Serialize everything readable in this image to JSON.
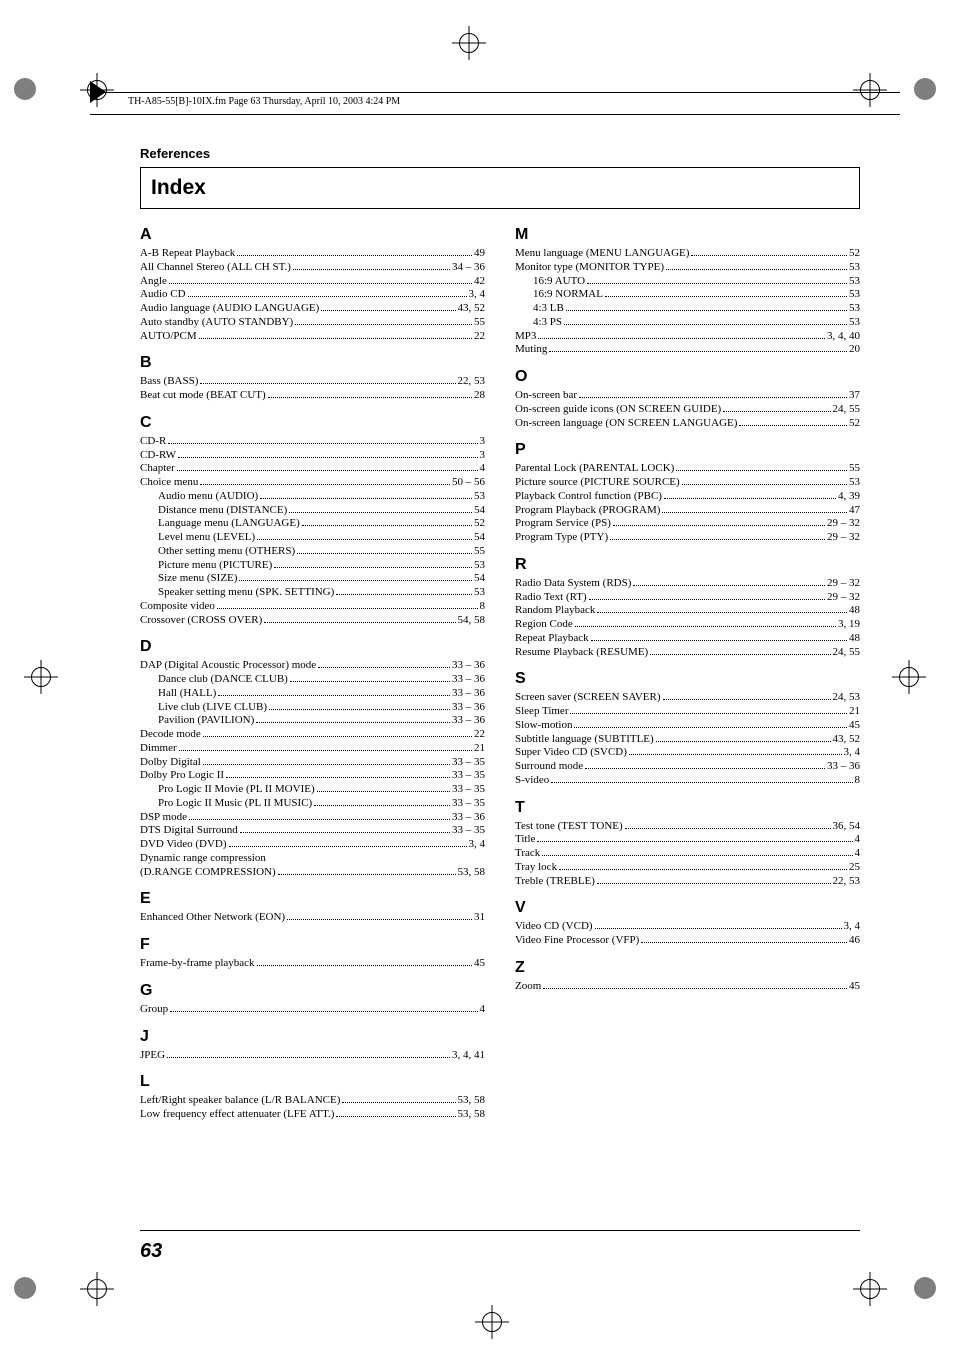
{
  "running_head": "TH-A85-55[B]-10IX.fm  Page 63  Thursday, April 10, 2003  4:24 PM",
  "section_title": "References",
  "index_title": "Index",
  "page_number": "63",
  "left": {
    "A": [
      {
        "l": "A-B Repeat Playback",
        "p": "49"
      },
      {
        "l": "All Channel Stereo (ALL CH ST.)",
        "p": "34 – 36"
      },
      {
        "l": "Angle",
        "p": "42"
      },
      {
        "l": "Audio CD",
        "p": "3, 4"
      },
      {
        "l": "Audio language (AUDIO LANGUAGE)",
        "p": "43, 52"
      },
      {
        "l": "Auto standby (AUTO STANDBY)",
        "p": "55"
      },
      {
        "l": "AUTO/PCM",
        "p": "22"
      }
    ],
    "B": [
      {
        "l": "Bass (BASS)",
        "p": "22, 53"
      },
      {
        "l": "Beat cut mode (BEAT CUT)",
        "p": "28"
      }
    ],
    "C": [
      {
        "l": "CD-R",
        "p": "3"
      },
      {
        "l": "CD-RW",
        "p": "3"
      },
      {
        "l": "Chapter",
        "p": "4"
      },
      {
        "l": "Choice menu",
        "p": "50 – 56"
      },
      {
        "l": "Audio menu (AUDIO)",
        "p": "53",
        "i": 1
      },
      {
        "l": "Distance menu (DISTANCE)",
        "p": "54",
        "i": 1
      },
      {
        "l": "Language menu (LANGUAGE)",
        "p": "52",
        "i": 1
      },
      {
        "l": "Level menu (LEVEL)",
        "p": "54",
        "i": 1
      },
      {
        "l": "Other setting menu (OTHERS)",
        "p": "55",
        "i": 1
      },
      {
        "l": "Picture menu (PICTURE)",
        "p": "53",
        "i": 1
      },
      {
        "l": "Size menu (SIZE)",
        "p": "54",
        "i": 1
      },
      {
        "l": "Speaker setting menu (SPK. SETTING)",
        "p": "53",
        "i": 1
      },
      {
        "l": "Composite video",
        "p": "8"
      },
      {
        "l": "Crossover (CROSS OVER)",
        "p": "54, 58"
      }
    ],
    "D": [
      {
        "l": "DAP (Digital Acoustic Processor) mode",
        "p": "33 – 36"
      },
      {
        "l": "Dance club (DANCE CLUB)",
        "p": "33 – 36",
        "i": 1
      },
      {
        "l": "Hall (HALL)",
        "p": "33 – 36",
        "i": 1
      },
      {
        "l": "Live club (LIVE CLUB)",
        "p": "33 – 36",
        "i": 1
      },
      {
        "l": "Pavilion (PAVILION)",
        "p": "33 – 36",
        "i": 1
      },
      {
        "l": "Decode mode",
        "p": "22"
      },
      {
        "l": "Dimmer",
        "p": "21"
      },
      {
        "l": "Dolby Digital",
        "p": "33 – 35"
      },
      {
        "l": "Dolby Pro Logic II",
        "p": "33 – 35"
      },
      {
        "l": "Pro Logic II Movie (PL II MOVIE)",
        "p": "33 – 35",
        "i": 1
      },
      {
        "l": "Pro Logic II Music (PL II MUSIC)",
        "p": "33 – 35",
        "i": 1
      },
      {
        "l": "DSP mode",
        "p": "33 – 36"
      },
      {
        "l": "DTS Digital Surround",
        "p": "33 – 35"
      },
      {
        "l": "DVD Video (DVD)",
        "p": "3, 4"
      },
      {
        "l": "Dynamic range compression",
        "nop": true
      },
      {
        "l": "(D.RANGE COMPRESSION)",
        "p": "53, 58"
      }
    ],
    "E": [
      {
        "l": "Enhanced Other Network (EON)",
        "p": "31"
      }
    ],
    "F": [
      {
        "l": "Frame-by-frame playback",
        "p": "45"
      }
    ],
    "G": [
      {
        "l": "Group",
        "p": "4"
      }
    ],
    "J": [
      {
        "l": "JPEG",
        "p": "3, 4, 41"
      }
    ],
    "L": [
      {
        "l": "Left/Right speaker balance (L/R BALANCE)",
        "p": "53, 58"
      },
      {
        "l": "Low frequency effect attenuater (LFE ATT.)",
        "p": "53, 58"
      }
    ]
  },
  "right": {
    "M": [
      {
        "l": "Menu language (MENU LANGUAGE)",
        "p": "52"
      },
      {
        "l": "Monitor type (MONITOR TYPE)",
        "p": "53"
      },
      {
        "l": "16:9 AUTO",
        "p": "53",
        "i": 1
      },
      {
        "l": "16:9 NORMAL",
        "p": "53",
        "i": 1
      },
      {
        "l": "4:3 LB",
        "p": "53",
        "i": 1
      },
      {
        "l": "4:3 PS",
        "p": "53",
        "i": 1
      },
      {
        "l": "MP3",
        "p": "3, 4, 40"
      },
      {
        "l": "Muting",
        "p": "20"
      }
    ],
    "O": [
      {
        "l": "On-screen bar",
        "p": "37"
      },
      {
        "l": "On-screen guide icons (ON SCREEN GUIDE)",
        "p": "24, 55"
      },
      {
        "l": "On-screen language (ON SCREEN LANGUAGE)",
        "p": "52"
      }
    ],
    "P": [
      {
        "l": "Parental Lock (PARENTAL LOCK)",
        "p": "55"
      },
      {
        "l": "Picture source (PICTURE SOURCE)",
        "p": "53"
      },
      {
        "l": "Playback Control function (PBC)",
        "p": "4, 39"
      },
      {
        "l": "Program Playback (PROGRAM)",
        "p": "47"
      },
      {
        "l": "Program Service (PS)",
        "p": "29 – 32"
      },
      {
        "l": "Program Type (PTY)",
        "p": "29 – 32"
      }
    ],
    "R": [
      {
        "l": "Radio Data System (RDS)",
        "p": "29 – 32"
      },
      {
        "l": "Radio Text (RT)",
        "p": "29 – 32"
      },
      {
        "l": "Random Playback",
        "p": "48"
      },
      {
        "l": "Region Code",
        "p": "3, 19"
      },
      {
        "l": "Repeat Playback",
        "p": "48"
      },
      {
        "l": "Resume Playback (RESUME)",
        "p": "24, 55"
      }
    ],
    "S": [
      {
        "l": "Screen saver (SCREEN SAVER)",
        "p": "24, 53"
      },
      {
        "l": "Sleep Timer",
        "p": "21"
      },
      {
        "l": "Slow-motion",
        "p": "45"
      },
      {
        "l": "Subtitle language (SUBTITLE)",
        "p": "43, 52"
      },
      {
        "l": "Super Video CD (SVCD)",
        "p": "3, 4"
      },
      {
        "l": "Surround mode",
        "p": "33 – 36"
      },
      {
        "l": "S-video",
        "p": "8"
      }
    ],
    "T": [
      {
        "l": "Test tone (TEST TONE)",
        "p": "36, 54"
      },
      {
        "l": "Title",
        "p": "4"
      },
      {
        "l": "Track",
        "p": "4"
      },
      {
        "l": "Tray lock",
        "p": "25"
      },
      {
        "l": "Treble (TREBLE)",
        "p": "22, 53"
      }
    ],
    "V": [
      {
        "l": "Video CD (VCD)",
        "p": "3, 4"
      },
      {
        "l": "Video Fine Processor (VFP)",
        "p": "46"
      }
    ],
    "Z": [
      {
        "l": "Zoom",
        "p": "45"
      }
    ]
  }
}
